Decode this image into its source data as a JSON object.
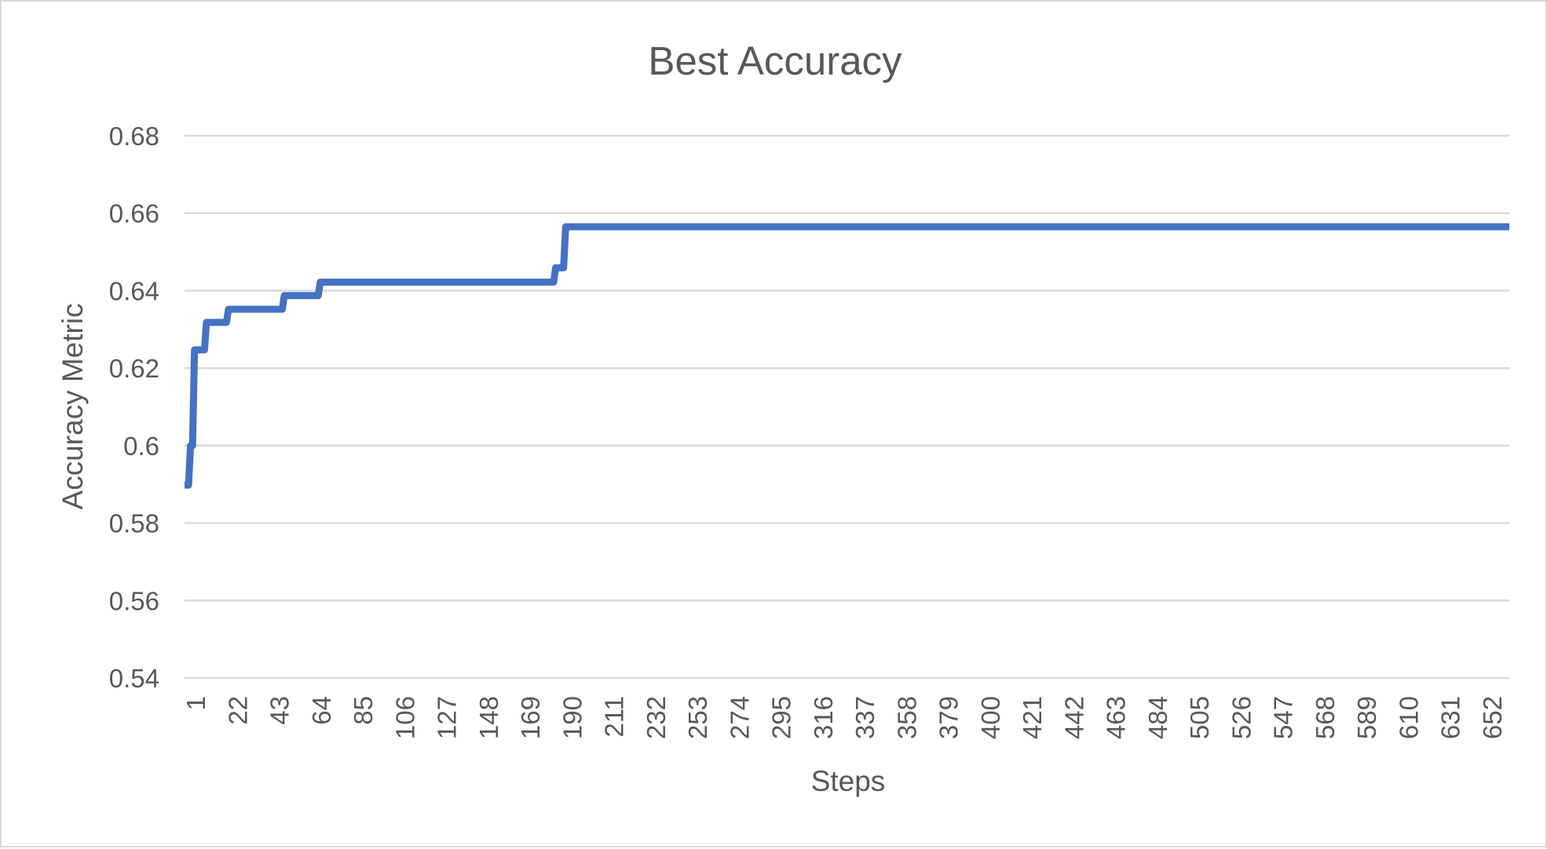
{
  "chart_data": {
    "type": "line",
    "title": "Best Accuracy",
    "xlabel": "Steps",
    "ylabel": "Accuracy Metric",
    "ylim": [
      0.54,
      0.68
    ],
    "yticks": [
      0.54,
      0.56,
      0.58,
      0.6,
      0.62,
      0.64,
      0.66,
      0.68
    ],
    "ytick_labels": [
      "0.54",
      "0.56",
      "0.58",
      "0.6",
      "0.62",
      "0.64",
      "0.66",
      "0.68"
    ],
    "xlim": [
      1,
      665
    ],
    "xtick_labels": [
      "1",
      "22",
      "43",
      "64",
      "85",
      "106",
      "127",
      "148",
      "169",
      "190",
      "211",
      "232",
      "253",
      "274",
      "295",
      "316",
      "337",
      "358",
      "379",
      "400",
      "421",
      "442",
      "463",
      "484",
      "505",
      "526",
      "547",
      "568",
      "589",
      "610",
      "631",
      "652"
    ],
    "grid": true,
    "legend": "none",
    "series": [
      {
        "color": "#4472c4",
        "x": [
          1,
          3,
          4,
          5,
          6,
          7,
          8,
          11,
          12,
          22,
          23,
          50,
          51,
          68,
          69,
          186,
          187,
          191,
          192,
          665
        ],
        "y": [
          0.5898,
          0.5898,
          0.6,
          0.6,
          0.6247,
          0.6247,
          0.6247,
          0.6247,
          0.6318,
          0.6318,
          0.6352,
          0.6352,
          0.6387,
          0.6387,
          0.6422,
          0.6422,
          0.6459,
          0.6459,
          0.6565,
          0.6565
        ]
      }
    ]
  }
}
